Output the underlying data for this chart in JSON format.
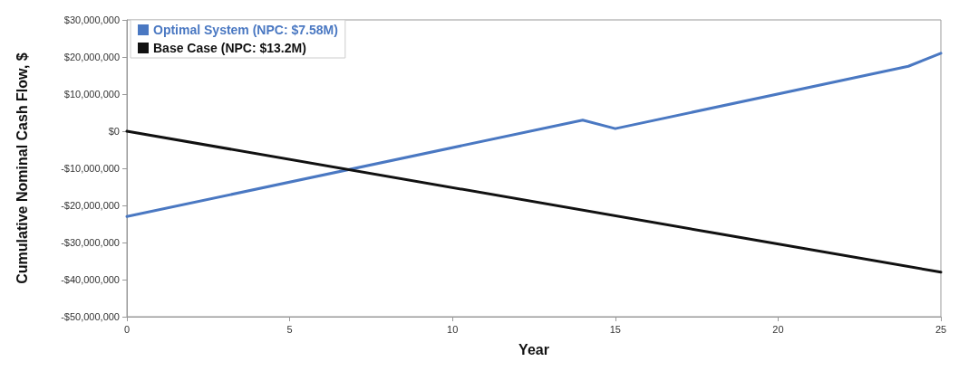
{
  "chart_data": {
    "type": "line",
    "xlabel": "Year",
    "ylabel": "Cumulative Nominal Cash Flow, $",
    "series": [
      {
        "name": "Optimal System (NPC: $7.58M)",
        "color": "#4a78c2",
        "x": [
          0,
          14,
          15,
          24,
          25
        ],
        "values": [
          -23000000,
          3000000,
          700000,
          17500000,
          21000000
        ]
      },
      {
        "name": "Base Case (NPC: $13.2M)",
        "color": "#111111",
        "x": [
          0,
          25
        ],
        "values": [
          0,
          -38000000
        ]
      }
    ],
    "xlim": [
      0,
      25
    ],
    "xticks": [
      0,
      5,
      10,
      15,
      20,
      25
    ],
    "ylim": [
      -50000000,
      30000000
    ],
    "yticks": [
      {
        "value": -50000000,
        "label": "-$50,000,000"
      },
      {
        "value": -40000000,
        "label": "-$40,000,000"
      },
      {
        "value": -30000000,
        "label": "-$30,000,000"
      },
      {
        "value": -20000000,
        "label": "-$20,000,000"
      },
      {
        "value": -10000000,
        "label": "-$10,000,000"
      },
      {
        "value": 0,
        "label": "$0"
      },
      {
        "value": 10000000,
        "label": "$10,000,000"
      },
      {
        "value": 20000000,
        "label": "$20,000,000"
      },
      {
        "value": 30000000,
        "label": "$30,000,000"
      }
    ],
    "legend": "top left",
    "grid": false,
    "marker": "none",
    "line_style": "solid"
  }
}
